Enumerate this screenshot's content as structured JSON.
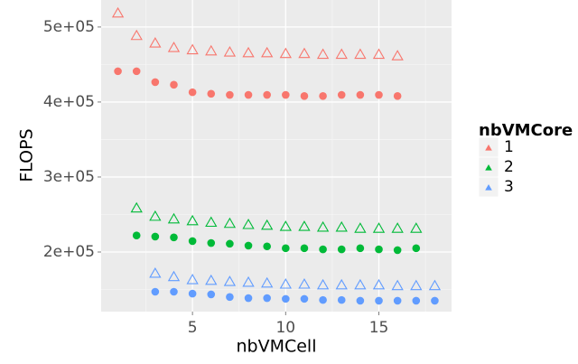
{
  "chart_data": {
    "type": "scatter",
    "x_label": "nbVMCell",
    "y_label": "FLOPS",
    "legend_title": "nbVMCore",
    "xlim": [
      0.1,
      18.9
    ],
    "xticks": [
      5,
      10,
      15
    ],
    "x_minor_ticks": [
      2.5,
      7.5,
      12.5,
      17.5
    ],
    "ylim": [
      120500,
      536000
    ],
    "yticks": [
      {
        "value": 200000,
        "label": "2e+05"
      },
      {
        "value": 300000,
        "label": "3e+05"
      },
      {
        "value": 400000,
        "label": "4e+05"
      },
      {
        "value": 500000,
        "label": "5e+05"
      }
    ],
    "y_minor_ticks": [
      150000,
      250000,
      350000,
      450000
    ],
    "grid": true,
    "series": [
      {
        "name": "1",
        "color": "#F8766D",
        "x": [
          1,
          2,
          3,
          4,
          5,
          6,
          7,
          8,
          9,
          10,
          11,
          12,
          13,
          14,
          15,
          16
        ],
        "triangle_values": [
          518000,
          488000,
          478000,
          472000,
          469000,
          467500,
          466000,
          465000,
          465000,
          464000,
          464000,
          463000,
          463000,
          463000,
          463000,
          461000
        ],
        "circle_values": [
          441000,
          441000,
          426500,
          423000,
          413000,
          411000,
          409500,
          409500,
          409500,
          409500,
          408000,
          408000,
          409500,
          409500,
          409500,
          408000
        ]
      },
      {
        "name": "2",
        "color": "#00BA38",
        "x": [
          2,
          3,
          4,
          5,
          6,
          7,
          8,
          9,
          10,
          11,
          12,
          13,
          14,
          15,
          16,
          17
        ],
        "triangle_values": [
          258000,
          247000,
          243500,
          241000,
          239000,
          237500,
          236000,
          235000,
          233500,
          233500,
          232500,
          232500,
          231000,
          231000,
          231000,
          231000
        ],
        "circle_values": [
          222000,
          220500,
          219500,
          214500,
          212000,
          211000,
          208500,
          207500,
          205000,
          205000,
          203500,
          203500,
          205000,
          203500,
          202500,
          205000
        ]
      },
      {
        "name": "3",
        "color": "#619CFF",
        "x": [
          3,
          4,
          5,
          6,
          7,
          8,
          9,
          10,
          11,
          12,
          13,
          14,
          15,
          16,
          17,
          18
        ],
        "triangle_values": [
          171000,
          166500,
          162500,
          161500,
          160000,
          159000,
          158000,
          156500,
          156500,
          155500,
          155500,
          155500,
          155500,
          154500,
          154500,
          154500
        ],
        "circle_values": [
          147000,
          147000,
          144500,
          143500,
          140000,
          138500,
          138500,
          137500,
          137500,
          136000,
          136000,
          135000,
          135000,
          135000,
          135000,
          135000
        ]
      }
    ]
  }
}
